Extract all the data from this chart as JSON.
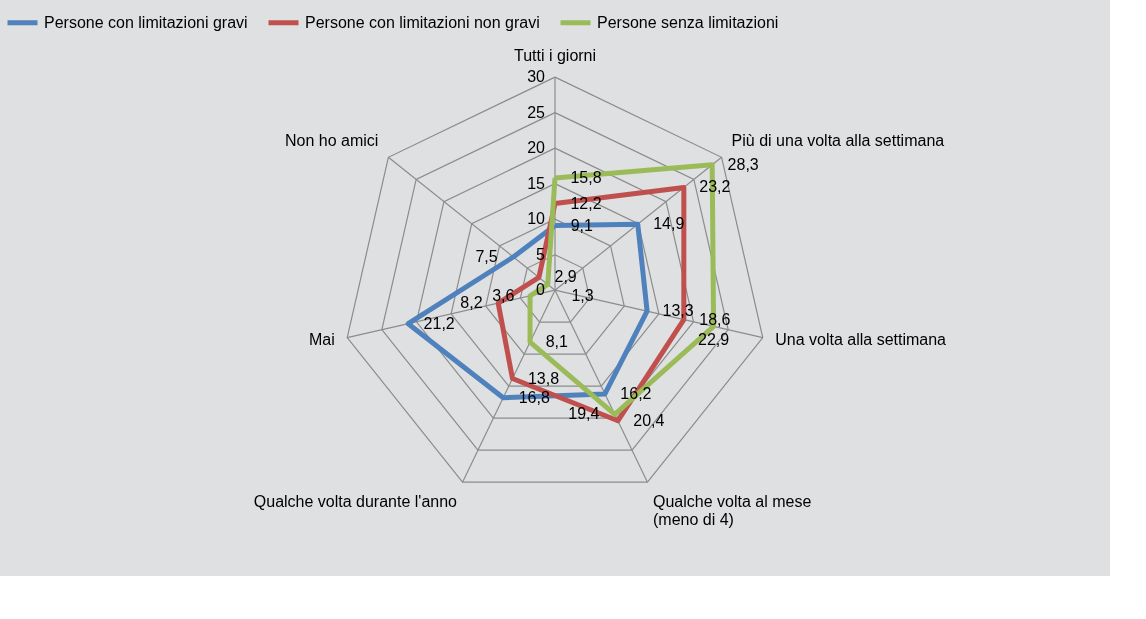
{
  "chart_data": {
    "type": "radar",
    "categories": [
      "Tutti i giorni",
      "Più di una volta alla settimana",
      "Una volta alla settimana",
      "Qualche volta al mese\n(meno di 4)",
      "Qualche volta durante l'anno",
      "Mai",
      "Non ho amici"
    ],
    "series": [
      {
        "name": "Persone con limitazioni gravi",
        "color": "#4f81bd",
        "values": [
          9.1,
          14.9,
          13.3,
          16.2,
          16.8,
          21.2,
          7.5
        ],
        "value_labels": [
          "9,1",
          "14,9",
          "13,3",
          "16,2",
          "16,8",
          "21,2",
          "7,5"
        ]
      },
      {
        "name": "Persone con limitazioni non gravi",
        "color": "#c0504d",
        "values": [
          12.2,
          23.2,
          18.6,
          20.4,
          13.8,
          8.2,
          2.9
        ],
        "value_labels": [
          "12,2",
          "23,2",
          "18,6",
          "20,4",
          "13,8",
          "8,2",
          "2,9"
        ]
      },
      {
        "name": "Persone senza limitazioni",
        "color": "#9bbb59",
        "values": [
          15.8,
          28.3,
          22.9,
          19.4,
          8.1,
          3.6,
          1.3
        ],
        "value_labels": [
          "15,8",
          "28,3",
          "22,9",
          "19,4",
          "8,1",
          "3,6",
          "1,3"
        ]
      }
    ],
    "ylim": [
      0,
      30
    ],
    "yticks": [
      0,
      5,
      10,
      15,
      20,
      25,
      30
    ],
    "grid": true,
    "legend": "top"
  }
}
